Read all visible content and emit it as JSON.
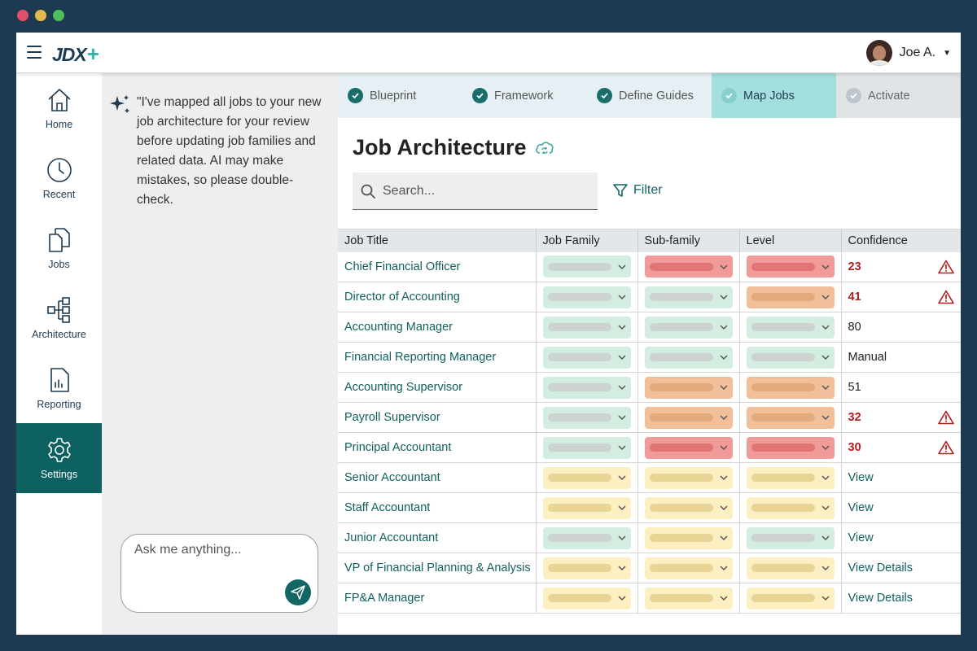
{
  "app": {
    "logo": "JDX",
    "logo_plus": "+",
    "user_name": "Joe A."
  },
  "window_dots": [
    "#e0506a",
    "#e2b94a",
    "#4cc05a"
  ],
  "nav": [
    {
      "label": "Home",
      "icon": "home-icon"
    },
    {
      "label": "Recent",
      "icon": "clock-icon"
    },
    {
      "label": "Jobs",
      "icon": "documents-icon"
    },
    {
      "label": "Architecture",
      "icon": "hierarchy-icon"
    },
    {
      "label": "Reporting",
      "icon": "report-icon"
    },
    {
      "label": "Settings",
      "icon": "gear-icon",
      "active": true
    }
  ],
  "chat": {
    "message": "\"I've mapped all jobs to your new job architecture for your review before updating job families and related data. AI may make mistakes, so please double-check.",
    "input_placeholder": "Ask me anything..."
  },
  "steps": [
    {
      "label": "Blueprint",
      "state": "done"
    },
    {
      "label": "Framework",
      "state": "done"
    },
    {
      "label": "Define Guides",
      "state": "done"
    },
    {
      "label": "Map Jobs",
      "state": "current"
    },
    {
      "label": "Activate",
      "state": "disabled"
    }
  ],
  "page": {
    "title": "Job Architecture",
    "search_placeholder": "Search...",
    "filter_label": "Filter"
  },
  "table": {
    "columns": [
      "Job Title",
      "Job Family",
      "Sub-family",
      "Level",
      "Confidence"
    ],
    "rows": [
      {
        "title": "Chief Financial Officer",
        "family": "green",
        "sub": "red",
        "level": "red",
        "confidence": "23",
        "kind": "low"
      },
      {
        "title": "Director of Accounting",
        "family": "green",
        "sub": "green",
        "level": "orange",
        "confidence": "41",
        "kind": "low"
      },
      {
        "title": "Accounting Manager",
        "family": "green",
        "sub": "green",
        "level": "green",
        "confidence": "80",
        "kind": "num"
      },
      {
        "title": "Financial Reporting Manager",
        "family": "green",
        "sub": "green",
        "level": "green",
        "confidence": "Manual",
        "kind": "num"
      },
      {
        "title": "Accounting Supervisor",
        "family": "green",
        "sub": "orange",
        "level": "orange",
        "confidence": "51",
        "kind": "num"
      },
      {
        "title": "Payroll Supervisor",
        "family": "green",
        "sub": "orange",
        "level": "orange",
        "confidence": "32",
        "kind": "low"
      },
      {
        "title": "Principal Accountant",
        "family": "green",
        "sub": "red",
        "level": "red",
        "confidence": "30",
        "kind": "low"
      },
      {
        "title": "Senior Accountant",
        "family": "yellow",
        "sub": "yellow",
        "level": "yellow",
        "confidence": "View",
        "kind": "link"
      },
      {
        "title": "Staff Accountant",
        "family": "yellow",
        "sub": "yellow",
        "level": "yellow",
        "confidence": "View",
        "kind": "link"
      },
      {
        "title": "Junior Accountant",
        "family": "green",
        "sub": "yellow",
        "level": "green",
        "confidence": "View",
        "kind": "link"
      },
      {
        "title": "VP of Financial Planning & Analysis",
        "family": "yellow",
        "sub": "yellow",
        "level": "yellow",
        "confidence": "View Details",
        "kind": "link"
      },
      {
        "title": "FP&A Manager",
        "family": "yellow",
        "sub": "yellow",
        "level": "yellow",
        "confidence": "View Details",
        "kind": "link"
      }
    ]
  }
}
